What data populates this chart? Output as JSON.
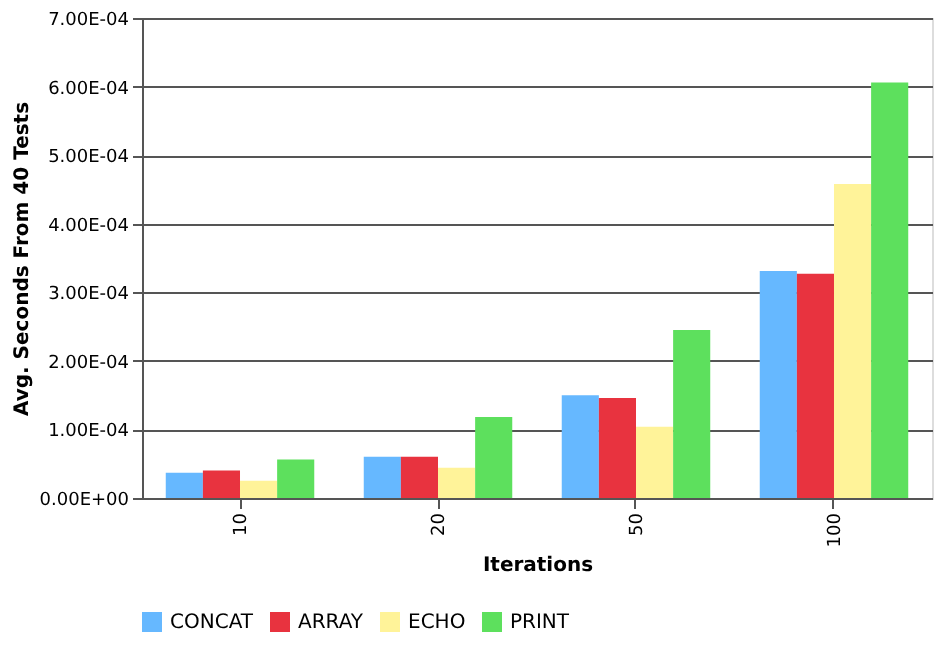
{
  "chart_data": {
    "type": "bar",
    "xlabel": "Iterations",
    "ylabel": "Avg. Seconds From 40 Tests",
    "categories": [
      "10",
      "20",
      "50",
      "100"
    ],
    "series": [
      {
        "name": "CONCAT",
        "color": "#66b8ff",
        "values": [
          3.7e-05,
          6e-05,
          0.00015,
          0.000331
        ]
      },
      {
        "name": "ARRAY",
        "color": "#e8333f",
        "values": [
          4e-05,
          6e-05,
          0.000146,
          0.000327
        ]
      },
      {
        "name": "ECHO",
        "color": "#fff399",
        "values": [
          2.5e-05,
          4.4e-05,
          0.000104,
          0.000458
        ]
      },
      {
        "name": "PRINT",
        "color": "#5de05d",
        "values": [
          5.6e-05,
          0.000118,
          0.000245,
          0.000606
        ]
      }
    ],
    "ylim": [
      0,
      0.0007
    ],
    "yticks": [
      {
        "value": 0,
        "label": "0.00E+00"
      },
      {
        "value": 0.0001,
        "label": "1.00E-04"
      },
      {
        "value": 0.0002,
        "label": "2.00E-04"
      },
      {
        "value": 0.0003,
        "label": "3.00E-04"
      },
      {
        "value": 0.0004,
        "label": "4.00E-04"
      },
      {
        "value": 0.0005,
        "label": "5.00E-04"
      },
      {
        "value": 0.0006,
        "label": "6.00E-04"
      },
      {
        "value": 0.0007,
        "label": "7.00E-04"
      }
    ],
    "grid": "y",
    "legend": "bottom"
  }
}
